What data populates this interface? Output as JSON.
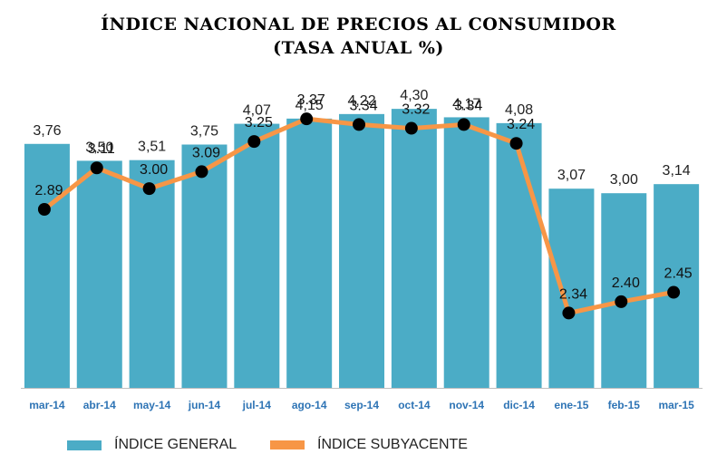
{
  "title_line1": "ÍNDICE NACIONAL DE PRECIOS AL CONSUMIDOR",
  "title_line2": "(TASA ANUAL %)",
  "colors": {
    "bar": "#4bacc6",
    "line": "#f79646",
    "point": "#000000",
    "tick": "#2e74b5"
  },
  "chart_data": {
    "type": "bar",
    "categories": [
      "mar-14",
      "abr-14",
      "may-14",
      "jun-14",
      "jul-14",
      "ago-14",
      "sep-14",
      "oct-14",
      "nov-14",
      "dic-14",
      "ene-15",
      "feb-15",
      "mar-15"
    ],
    "series": [
      {
        "name": "ÍNDICE GENERAL",
        "type": "bar",
        "values": [
          3.76,
          3.5,
          3.51,
          3.75,
          4.07,
          4.15,
          4.22,
          4.3,
          4.17,
          4.08,
          3.07,
          3.0,
          3.14
        ],
        "labels": [
          "3,76",
          "3,50",
          "3,51",
          "3,75",
          "4,07",
          "4,15",
          "4,22",
          "4,30",
          "4,17",
          "4,08",
          "3,07",
          "3,00",
          "3,14"
        ]
      },
      {
        "name": "ÍNDICE SUBYACENTE",
        "type": "line",
        "values": [
          2.89,
          3.11,
          3.0,
          3.09,
          3.25,
          3.37,
          3.34,
          3.32,
          3.34,
          3.24,
          2.34,
          2.4,
          2.45
        ],
        "labels": [
          "2.89",
          "3.11",
          "3.00",
          "3.09",
          "3.25",
          "3.37",
          "3.34",
          "3.32",
          "3.34",
          "3.24",
          "2.34",
          "2.40",
          "2.45"
        ]
      }
    ],
    "title": "ÍNDICE NACIONAL DE PRECIOS AL CONSUMIDOR (TASA ANUAL %)",
    "legend_position": "bottom-left",
    "grid": false
  }
}
